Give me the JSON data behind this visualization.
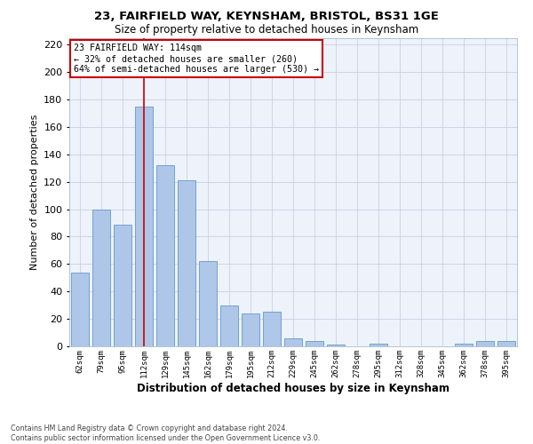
{
  "title1": "23, FAIRFIELD WAY, KEYNSHAM, BRISTOL, BS31 1GE",
  "title2": "Size of property relative to detached houses in Keynsham",
  "xlabel": "Distribution of detached houses by size in Keynsham",
  "ylabel": "Number of detached properties",
  "categories": [
    "62sqm",
    "79sqm",
    "95sqm",
    "112sqm",
    "129sqm",
    "145sqm",
    "162sqm",
    "179sqm",
    "195sqm",
    "212sqm",
    "229sqm",
    "245sqm",
    "262sqm",
    "278sqm",
    "295sqm",
    "312sqm",
    "328sqm",
    "345sqm",
    "362sqm",
    "378sqm",
    "395sqm"
  ],
  "values": [
    54,
    100,
    89,
    175,
    132,
    121,
    62,
    30,
    24,
    25,
    6,
    4,
    1,
    0,
    2,
    0,
    0,
    0,
    2,
    4,
    4
  ],
  "bar_color": "#aec6e8",
  "bar_edge_color": "#6699cc",
  "vline_x": 3,
  "annotation_text": "23 FAIRFIELD WAY: 114sqm\n← 32% of detached houses are smaller (260)\n64% of semi-detached houses are larger (530) →",
  "annotation_box_color": "#ffffff",
  "annotation_box_edge": "#cc0000",
  "vline_color": "#cc0000",
  "grid_color": "#c8d0e8",
  "background_color": "#eef2fa",
  "ylim": [
    0,
    225
  ],
  "yticks": [
    0,
    20,
    40,
    60,
    80,
    100,
    120,
    140,
    160,
    180,
    200,
    220
  ],
  "footnote": "Contains HM Land Registry data © Crown copyright and database right 2024.\nContains public sector information licensed under the Open Government Licence v3.0."
}
